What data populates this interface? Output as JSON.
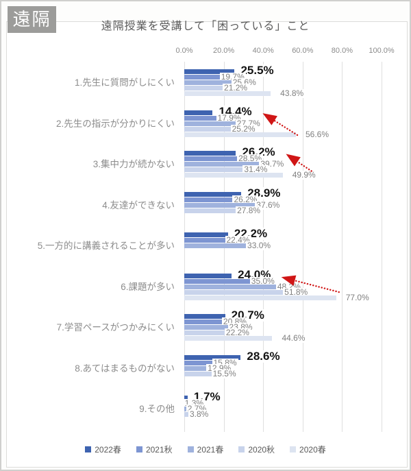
{
  "window": {
    "badge": "遠隔"
  },
  "chart_data": {
    "type": "bar",
    "orientation": "horizontal",
    "title": "遠隔授業を受講して「困っている」こと",
    "value_axis": {
      "position": "top",
      "min": 0,
      "max": 100,
      "tick_values": [
        0,
        20,
        40,
        60,
        80,
        100
      ],
      "tick_labels": [
        "0.0%",
        "20.0%",
        "40.0%",
        "60.0%",
        "80.0%",
        "100.0%"
      ],
      "grid": true
    },
    "series": [
      "2022春",
      "2021秋",
      "2021春",
      "2020秋",
      "2020春"
    ],
    "series_colors": [
      "#3e63b0",
      "#7d95d2",
      "#9fb2dd",
      "#c8d3eb",
      "#dde4f1"
    ],
    "emphasized_series": "2022春",
    "categories": [
      "1.先生に質問がしにくい",
      "2.先生の指示が分かりにくい",
      "3.集中力が続かない",
      "4.友達ができない",
      "5.一方的に講義されることが多い",
      "6.課題が多い",
      "7.学習ペースがつかみにくい",
      "8.あてはまるものがない",
      "9.その他"
    ],
    "values": [
      [
        25.5,
        19.7,
        25.6,
        21.2,
        43.8
      ],
      [
        14.4,
        17.9,
        27.7,
        25.2,
        56.6
      ],
      [
        26.2,
        28.5,
        39.7,
        31.4,
        49.9
      ],
      [
        28.9,
        26.2,
        37.6,
        27.8,
        null
      ],
      [
        22.2,
        22.4,
        33.0,
        null,
        null
      ],
      [
        24.0,
        35.0,
        48.2,
        51.8,
        77.0
      ],
      [
        20.7,
        20.8,
        23.8,
        22.2,
        44.6
      ],
      [
        28.6,
        15.8,
        12.9,
        15.5,
        null
      ],
      [
        1.7,
        1.3,
        2.7,
        3.8,
        null
      ]
    ],
    "annotations": {
      "description": "red dotted arrows from 2020春 bar end up to bold 2022春 label",
      "arrow_rows": [
        1,
        2,
        5
      ],
      "color": "#d01616"
    },
    "legend": {
      "position": "bottom",
      "items": [
        "2022春",
        "2021秋",
        "2021春",
        "2020秋",
        "2020春"
      ]
    }
  }
}
